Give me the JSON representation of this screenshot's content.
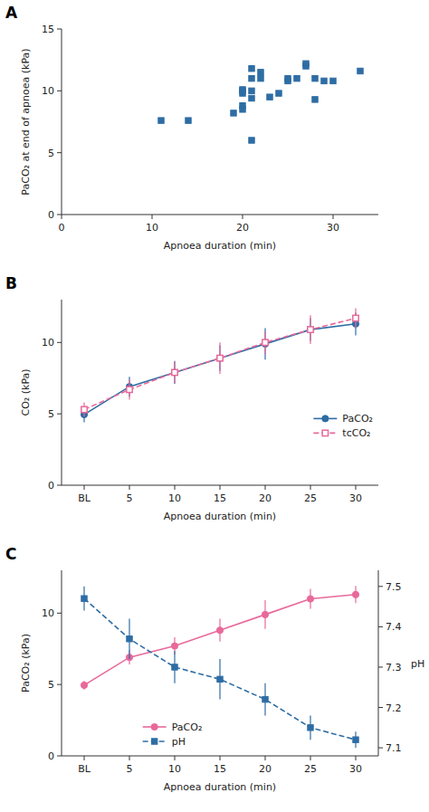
{
  "chart_data": [
    {
      "type": "scatter",
      "title": "A",
      "x": [
        11,
        14,
        19,
        20,
        20,
        20,
        20,
        20,
        21,
        21,
        21,
        21,
        21,
        22,
        22,
        23,
        24,
        25,
        25,
        26,
        27,
        27,
        28,
        28,
        29,
        30,
        33
      ],
      "values": [
        7.6,
        7.6,
        8.2,
        8.5,
        8.8,
        9.8,
        10.0,
        10.1,
        6.0,
        9.4,
        10.0,
        11.0,
        11.8,
        11.5,
        11.0,
        9.5,
        9.8,
        10.8,
        11.0,
        11.0,
        12.0,
        12.2,
        9.3,
        11.0,
        10.8,
        10.8,
        11.6
      ],
      "color": "#2e6da4",
      "marker": "square",
      "xlabel": "Apnoea duration (min)",
      "ylabel": "PaCO₂ at end of apnoea (kPa)",
      "xlim": [
        0,
        35
      ],
      "ylim": [
        0,
        15
      ],
      "xticks": [
        0,
        10,
        20,
        30
      ],
      "yticks": [
        0,
        5,
        10,
        15
      ]
    },
    {
      "type": "line",
      "title": "B",
      "categories": [
        "BL",
        "5",
        "10",
        "15",
        "20",
        "25",
        "30"
      ],
      "xlabel": "Apnoea duration (min)",
      "ylabel": "CO₂ (kPa)",
      "ylim": [
        0,
        13
      ],
      "yticks": [
        0,
        5,
        10
      ],
      "legend": "right",
      "series": [
        {
          "name": "PaCO₂",
          "color": "#2e6da4",
          "marker": "circle",
          "line_style": "solid",
          "values": [
            4.95,
            6.9,
            7.9,
            8.9,
            9.9,
            10.9,
            11.3
          ],
          "error_low": [
            0.55,
            0.7,
            0.8,
            0.9,
            1.1,
            0.8,
            0.8
          ],
          "error_high": [
            0.55,
            0.7,
            0.8,
            0.9,
            1.1,
            0.8,
            0.8
          ]
        },
        {
          "name": "tcCO₂",
          "color": "#e8699a",
          "marker": "open-square",
          "line_style": "dashed",
          "values": [
            5.3,
            6.7,
            7.9,
            8.9,
            10.0,
            10.9,
            11.7
          ],
          "error_low": [
            0.5,
            0.7,
            0.75,
            1.1,
            0.8,
            1.0,
            0.7
          ],
          "error_high": [
            0.5,
            0.7,
            0.75,
            1.1,
            0.8,
            1.0,
            0.7
          ]
        }
      ]
    },
    {
      "type": "line",
      "title": "C",
      "categories": [
        "BL",
        "5",
        "10",
        "15",
        "20",
        "25",
        "30"
      ],
      "xlabel": "Apnoea duration (min)",
      "ylabel": "PaCO₂ (kPa)",
      "y2label": "pH",
      "ylim": [
        0,
        13
      ],
      "yticks": [
        0,
        5,
        10
      ],
      "y2lim": [
        7.08,
        7.54
      ],
      "y2ticks": [
        7.1,
        7.2,
        7.3,
        7.4,
        7.5
      ],
      "legend": "bottom",
      "series": [
        {
          "name": "PaCO₂",
          "color": "#e8699a",
          "marker": "circle",
          "line_style": "solid",
          "values": [
            4.95,
            6.9,
            7.7,
            8.8,
            9.9,
            11.0,
            11.3
          ],
          "error_low": [
            0.3,
            0.5,
            0.6,
            0.8,
            1.0,
            0.7,
            0.6
          ],
          "error_high": [
            0.3,
            0.5,
            0.6,
            0.8,
            1.0,
            0.7,
            0.6
          ]
        },
        {
          "name": "pH",
          "color": "#2e6da4",
          "marker": "square",
          "line_style": "dashed",
          "axis": "y2",
          "values": [
            7.47,
            7.37,
            7.3,
            7.27,
            7.22,
            7.15,
            7.12
          ],
          "error_low": [
            0.03,
            0.05,
            0.04,
            0.05,
            0.04,
            0.03,
            0.02
          ],
          "error_high": [
            0.03,
            0.05,
            0.04,
            0.05,
            0.04,
            0.03,
            0.02
          ]
        }
      ]
    }
  ]
}
